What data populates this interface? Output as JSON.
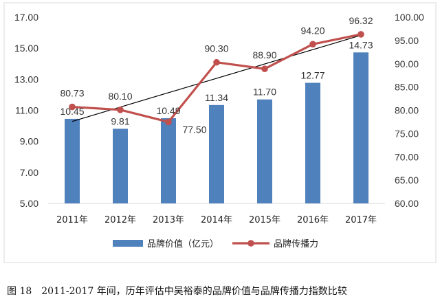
{
  "chart_data": {
    "type": "bar",
    "categories": [
      "2011年",
      "2012年",
      "2013年",
      "2014年",
      "2015年",
      "2016年",
      "2017年"
    ],
    "series": [
      {
        "name": "品牌价值（亿元）",
        "type": "bar",
        "axis": "left",
        "color": "#4F81BD",
        "values": [
          10.45,
          9.81,
          10.49,
          11.34,
          11.7,
          12.77,
          14.73
        ],
        "labels": [
          "10.45",
          "9.81",
          "10.49",
          "11.34",
          "11.70",
          "12.77",
          "14.73"
        ]
      },
      {
        "name": "品牌传播力",
        "type": "line",
        "axis": "right",
        "color": "#C0504D",
        "values": [
          80.73,
          80.1,
          77.5,
          90.3,
          88.9,
          94.2,
          96.32
        ],
        "labels": [
          "80.73",
          "80.10",
          "77.50",
          "90.30",
          "88.90",
          "94.20",
          "96.32"
        ]
      }
    ],
    "trendline": {
      "of": "品牌传播力",
      "kind": "linear",
      "color": "#000000"
    },
    "y_left": {
      "min": 5,
      "max": 17,
      "ticks": [
        "5.00",
        "7.00",
        "9.00",
        "11.00",
        "13.00",
        "15.00",
        "17.00"
      ]
    },
    "y_right": {
      "min": 60,
      "max": 100,
      "ticks": [
        "60.00",
        "65.00",
        "70.00",
        "75.00",
        "80.00",
        "85.00",
        "90.00",
        "95.00",
        "100.00"
      ]
    },
    "grid": false,
    "legend_position": "bottom"
  },
  "caption": {
    "figure_no": "图 18",
    "text": "2011-2017 年间，历年评估中吴裕泰的品牌价值与品牌传播力指数比较"
  }
}
